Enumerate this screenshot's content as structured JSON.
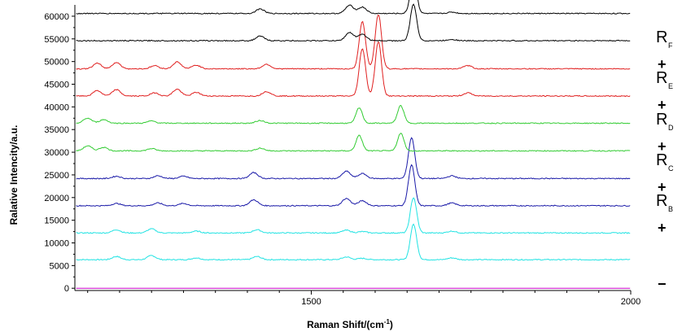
{
  "chart_data": {
    "type": "line",
    "xlabel": "Raman Shift/(cm",
    "xlabel_sup": "-1",
    "xlabel_tail": ")",
    "ylabel": "Ralative Intencity/a.u.",
    "xlim": [
      1130,
      2000
    ],
    "ylim": [
      -500,
      62500
    ],
    "x_ticks": [
      1500,
      2000
    ],
    "y_ticks": [
      0,
      5000,
      10000,
      15000,
      20000,
      25000,
      30000,
      35000,
      40000,
      45000,
      50000,
      55000,
      60000
    ],
    "grid": false,
    "series": [
      {
        "id": "blank",
        "color": "#cc00cc",
        "baseline": 0,
        "peaks": []
      },
      {
        "id": "B1",
        "color": "#22e3e3",
        "baseline": 6300,
        "peaks": [
          [
            1195,
            700
          ],
          [
            1250,
            900
          ],
          [
            1320,
            400
          ],
          [
            1415,
            700
          ],
          [
            1555,
            600
          ],
          [
            1580,
            300
          ],
          [
            1660,
            7800
          ],
          [
            1720,
            400
          ]
        ]
      },
      {
        "id": "B2",
        "color": "#22e3e3",
        "baseline": 12200,
        "peaks": [
          [
            1195,
            700
          ],
          [
            1250,
            900
          ],
          [
            1320,
            400
          ],
          [
            1415,
            700
          ],
          [
            1555,
            600
          ],
          [
            1580,
            300
          ],
          [
            1660,
            7800
          ],
          [
            1720,
            400
          ]
        ]
      },
      {
        "id": "C1",
        "color": "#1a1aa8",
        "baseline": 18200,
        "peaks": [
          [
            1195,
            500
          ],
          [
            1260,
            600
          ],
          [
            1300,
            500
          ],
          [
            1410,
            1300
          ],
          [
            1555,
            1600
          ],
          [
            1580,
            1100
          ],
          [
            1657,
            9000
          ],
          [
            1720,
            600
          ]
        ]
      },
      {
        "id": "C2",
        "color": "#1a1aa8",
        "baseline": 24200,
        "peaks": [
          [
            1195,
            500
          ],
          [
            1260,
            600
          ],
          [
            1300,
            500
          ],
          [
            1410,
            1300
          ],
          [
            1555,
            1600
          ],
          [
            1580,
            1100
          ],
          [
            1657,
            9000
          ],
          [
            1720,
            600
          ]
        ]
      },
      {
        "id": "D1",
        "color": "#33cc33",
        "baseline": 30300,
        "peaks": [
          [
            1150,
            1100
          ],
          [
            1175,
            800
          ],
          [
            1250,
            500
          ],
          [
            1420,
            600
          ],
          [
            1575,
            3400
          ],
          [
            1640,
            3900
          ]
        ]
      },
      {
        "id": "D2",
        "color": "#33cc33",
        "baseline": 36400,
        "peaks": [
          [
            1150,
            1100
          ],
          [
            1175,
            800
          ],
          [
            1250,
            500
          ],
          [
            1420,
            600
          ],
          [
            1575,
            3400
          ],
          [
            1640,
            3900
          ]
        ]
      },
      {
        "id": "E1",
        "color": "#e02020",
        "baseline": 42400,
        "peaks": [
          [
            1165,
            1200
          ],
          [
            1195,
            1400
          ],
          [
            1255,
            700
          ],
          [
            1290,
            1500
          ],
          [
            1320,
            800
          ],
          [
            1430,
            1000
          ],
          [
            1580,
            10500
          ],
          [
            1605,
            12000
          ],
          [
            1745,
            700
          ]
        ]
      },
      {
        "id": "E2",
        "color": "#e02020",
        "baseline": 48400,
        "peaks": [
          [
            1165,
            1200
          ],
          [
            1195,
            1400
          ],
          [
            1255,
            700
          ],
          [
            1290,
            1500
          ],
          [
            1320,
            800
          ],
          [
            1430,
            1000
          ],
          [
            1580,
            10500
          ],
          [
            1605,
            12000
          ],
          [
            1745,
            700
          ]
        ]
      },
      {
        "id": "F1",
        "color": "#000000",
        "baseline": 54600,
        "peaks": [
          [
            1420,
            1000
          ],
          [
            1560,
            1800
          ],
          [
            1580,
            1400
          ],
          [
            1660,
            8000
          ],
          [
            1720,
            300
          ]
        ]
      },
      {
        "id": "F2",
        "color": "#000000",
        "baseline": 60600,
        "peaks": [
          [
            1420,
            1000
          ],
          [
            1560,
            1800
          ],
          [
            1580,
            1400
          ],
          [
            1660,
            8000
          ],
          [
            1720,
            300
          ]
        ]
      }
    ]
  },
  "legend": [
    {
      "base": "R",
      "sub": "F",
      "op": "+"
    },
    {
      "base": "R",
      "sub": "E",
      "op": "+"
    },
    {
      "base": "R",
      "sub": "D",
      "op": "+"
    },
    {
      "base": "R",
      "sub": "C",
      "op": "+"
    },
    {
      "base": "R",
      "sub": "B",
      "op": "+"
    },
    {
      "base": "",
      "sub": "",
      "op": "−"
    }
  ]
}
